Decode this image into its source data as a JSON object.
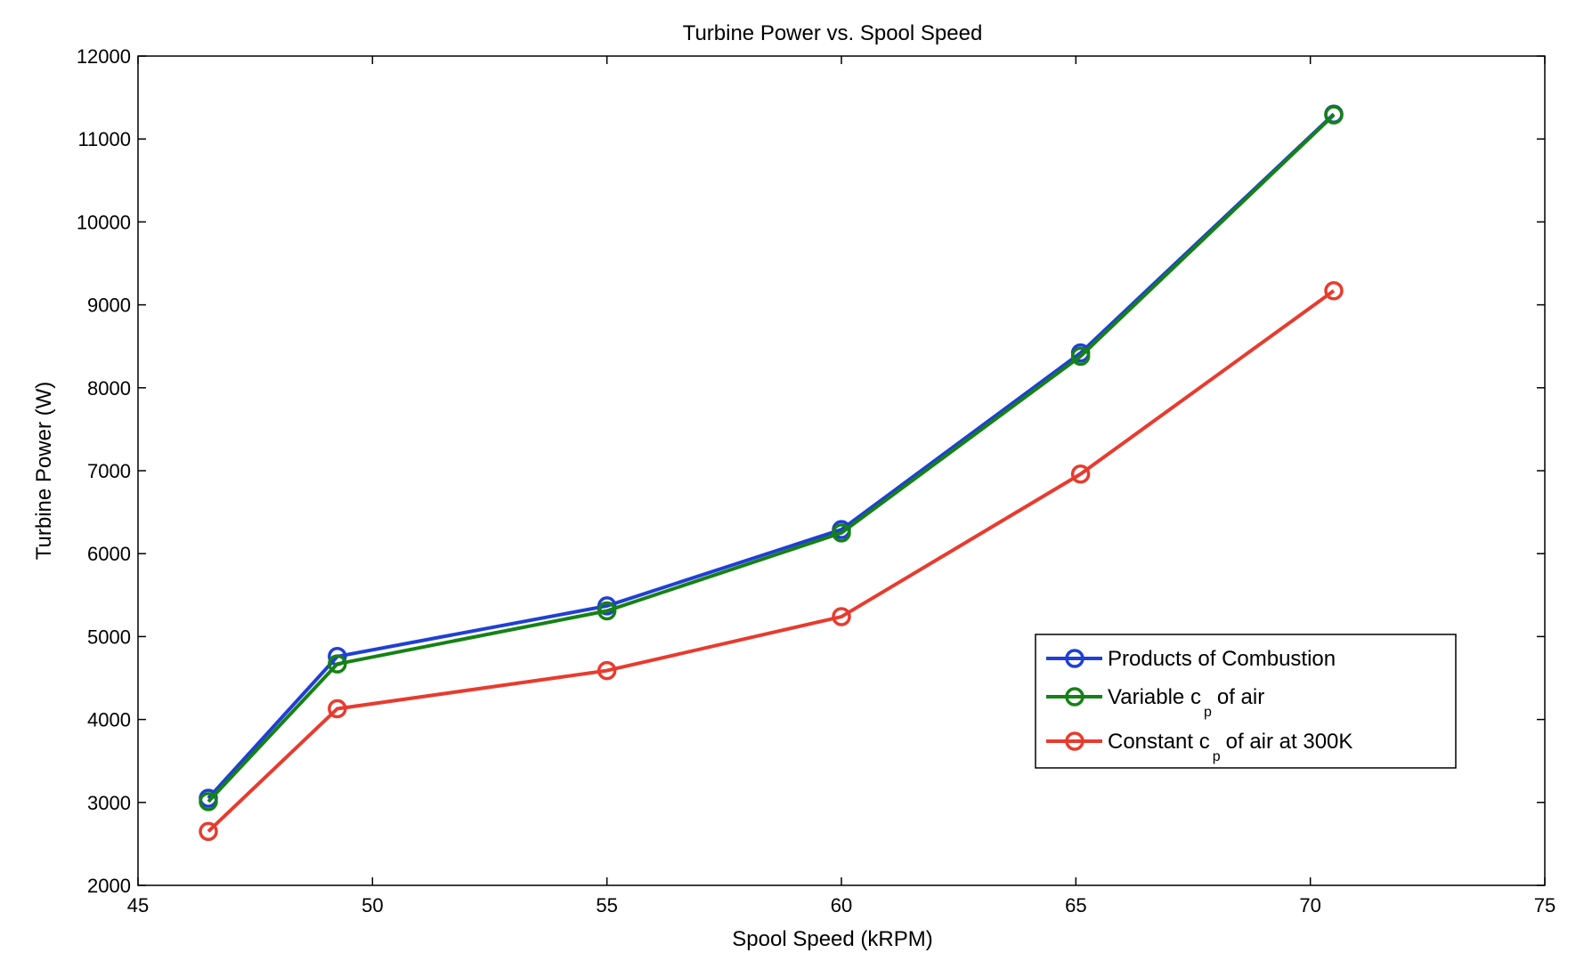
{
  "chart_data": {
    "type": "line",
    "title": "Turbine Power vs. Spool Speed",
    "xlabel": "Spool Speed (kRPM)",
    "ylabel": "Turbine Power (W)",
    "xlim": [
      45,
      75
    ],
    "ylim": [
      2000,
      12000
    ],
    "xticks": [
      45,
      50,
      55,
      60,
      65,
      70,
      75
    ],
    "yticks": [
      2000,
      3000,
      4000,
      5000,
      6000,
      7000,
      8000,
      9000,
      10000,
      11000,
      12000
    ],
    "grid": false,
    "legend_position": "bottom-right",
    "x": [
      46.5,
      49.25,
      55,
      60,
      65.1,
      70.5
    ],
    "series": [
      {
        "name": "Products of Combustion",
        "color": "#1f3fd6",
        "values": [
          3050,
          4760,
          5370,
          6290,
          8420,
          11300
        ]
      },
      {
        "name": "Variable c_p of air",
        "legend_parts": [
          "Variable c",
          "p",
          "of air"
        ],
        "color": "#148214",
        "values": [
          3010,
          4670,
          5310,
          6250,
          8380,
          11290
        ]
      },
      {
        "name": "Constant c_p of air at 300K",
        "legend_parts": [
          "Constant c",
          "p",
          "of air at 300K"
        ],
        "color": "#e83b2e",
        "values": [
          2650,
          4130,
          4590,
          5240,
          6960,
          9170
        ]
      }
    ]
  }
}
